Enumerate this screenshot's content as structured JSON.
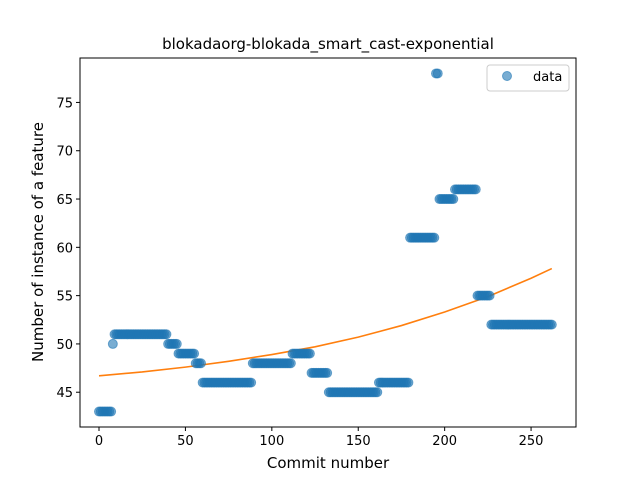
{
  "chart_data": {
    "type": "scatter",
    "title": "blokadaorg-blokada_smart_cast-exponential",
    "xlabel": "Commit number",
    "ylabel": "Number of instance of a feature",
    "xlim": [
      -11,
      276
    ],
    "ylim": [
      41.4,
      79.6
    ],
    "xticks": [
      0,
      50,
      100,
      150,
      200,
      250
    ],
    "yticks": [
      45,
      50,
      55,
      60,
      65,
      70,
      75
    ],
    "grid": false,
    "legend": {
      "position": "upper right",
      "entries": [
        "data"
      ]
    },
    "colors": {
      "data": "#1f77b4",
      "fit": "#ff7f0e"
    },
    "series": [
      {
        "name": "data",
        "kind": "scatter",
        "segments": [
          {
            "x_start": 0,
            "x_end": 7,
            "y": 43
          },
          {
            "x_start": 8,
            "x_end": 8,
            "y": 50
          },
          {
            "x_start": 9,
            "x_end": 39,
            "y": 51
          },
          {
            "x_start": 40,
            "x_end": 45,
            "y": 50
          },
          {
            "x_start": 46,
            "x_end": 55,
            "y": 49
          },
          {
            "x_start": 56,
            "x_end": 59,
            "y": 48
          },
          {
            "x_start": 60,
            "x_end": 88,
            "y": 46
          },
          {
            "x_start": 89,
            "x_end": 111,
            "y": 48
          },
          {
            "x_start": 112,
            "x_end": 122,
            "y": 49
          },
          {
            "x_start": 123,
            "x_end": 132,
            "y": 47
          },
          {
            "x_start": 133,
            "x_end": 161,
            "y": 45
          },
          {
            "x_start": 162,
            "x_end": 179,
            "y": 46
          },
          {
            "x_start": 180,
            "x_end": 194,
            "y": 61
          },
          {
            "x_start": 195,
            "x_end": 196,
            "y": 78
          },
          {
            "x_start": 197,
            "x_end": 205,
            "y": 65
          },
          {
            "x_start": 206,
            "x_end": 218,
            "y": 66
          },
          {
            "x_start": 219,
            "x_end": 226,
            "y": 55
          },
          {
            "x_start": 227,
            "x_end": 262,
            "y": 52
          }
        ]
      },
      {
        "name": "fit",
        "kind": "line",
        "x": [
          0,
          25,
          50,
          75,
          100,
          125,
          150,
          175,
          200,
          225,
          250,
          262
        ],
        "y": [
          46.7,
          47.1,
          47.6,
          48.2,
          48.9,
          49.7,
          50.7,
          51.9,
          53.3,
          54.9,
          56.8,
          57.8
        ]
      }
    ]
  }
}
